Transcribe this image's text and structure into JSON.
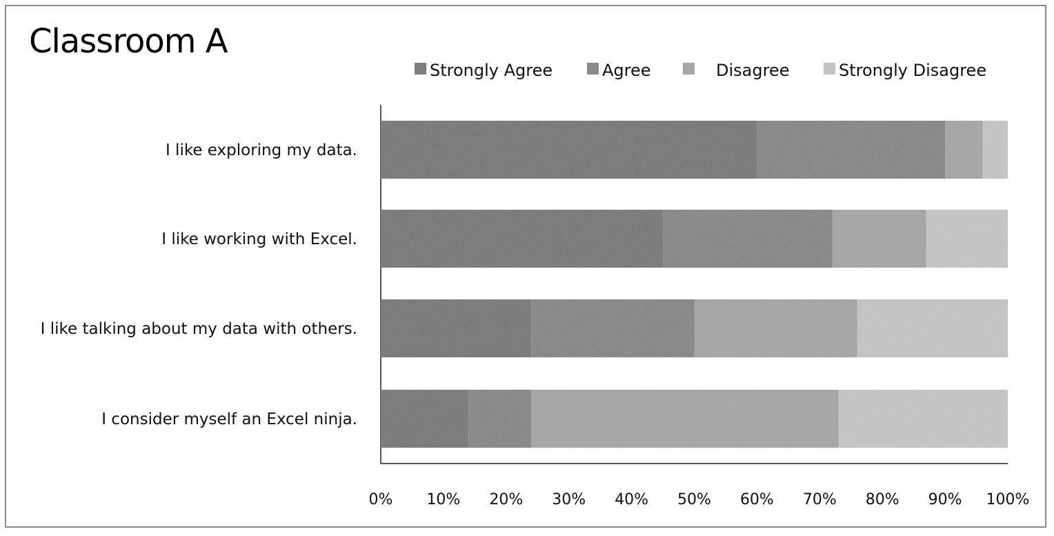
{
  "chart_data": {
    "type": "bar",
    "orientation": "horizontal",
    "stacked": "percent",
    "title": "Classroom A",
    "categories": [
      "I like exploring my data.",
      "I like working with Excel.",
      "I like talking about my data with others.",
      "I consider myself an Excel ninja."
    ],
    "series": [
      {
        "name": "Strongly Agree",
        "color": "#6a6a6a",
        "values": [
          60,
          45,
          24,
          14
        ]
      },
      {
        "name": "Agree",
        "color": "#7e7e7e",
        "values": [
          30,
          27,
          26,
          10
        ]
      },
      {
        "name": "Disagree",
        "color": "#a2a2a2",
        "values": [
          6,
          15,
          26,
          49
        ]
      },
      {
        "name": "Strongly Disagree",
        "color": "#c6c6c6",
        "values": [
          4,
          13,
          24,
          27
        ]
      }
    ],
    "xlim": [
      0,
      100
    ],
    "xticks": [
      "0%",
      "10%",
      "20%",
      "30%",
      "40%",
      "50%",
      "60%",
      "70%",
      "80%",
      "90%",
      "100%"
    ],
    "legend_position": "top",
    "grid": false
  }
}
